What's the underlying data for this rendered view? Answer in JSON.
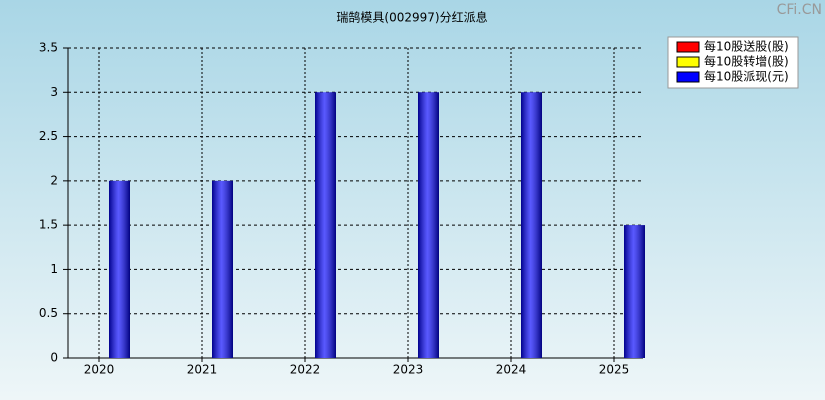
{
  "chart_data": {
    "type": "bar",
    "title": "瑞鹄模具(002997)分红派息",
    "watermark": "CFi.CN",
    "categories": [
      "2020",
      "2021",
      "2022",
      "2023",
      "2024",
      "2025"
    ],
    "series": [
      {
        "name": "每10股送股(股)",
        "color": "#ff0000",
        "values": [
          null,
          null,
          null,
          null,
          null,
          null
        ]
      },
      {
        "name": "每10股转增(股)",
        "color": "#ffff00",
        "values": [
          null,
          null,
          null,
          null,
          null,
          null
        ]
      },
      {
        "name": "每10股派现(元)",
        "color": "#0000ff",
        "values": [
          2,
          2,
          3,
          3,
          3,
          1.5
        ]
      }
    ],
    "ylim": [
      0,
      3.5
    ],
    "yticks": [
      0,
      0.5,
      1,
      1.5,
      2,
      2.5,
      3,
      3.5
    ],
    "grid": true,
    "legend": "top-right"
  }
}
